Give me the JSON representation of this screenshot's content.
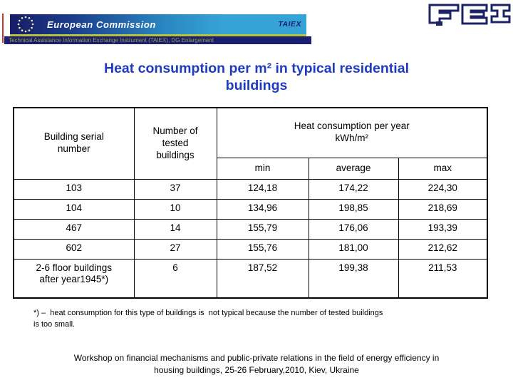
{
  "header": {
    "org_name": "European Commission",
    "taiex_label": "TAIEX",
    "subbar_text": "Technical Assistance Information Exchange Instrument (TAIEX), DG Enlargement",
    "fei_logo_text": "FEI",
    "icons": {
      "eu_stars": "eu-stars-icon",
      "fei": "fei-logo"
    }
  },
  "title": "Heat consumption per m² in typical residential\nbuildings",
  "table": {
    "col_building": "Building serial\nnumber",
    "col_tested": "Number of\ntested\nbuildings",
    "col_heat_span": "Heat consumption per year\nkWh/m²",
    "sub_headers": [
      "min",
      "average",
      "max"
    ],
    "rows": [
      [
        "103",
        "37",
        "124,18",
        "174,22",
        "224,30"
      ],
      [
        "104",
        "10",
        "134,96",
        "198,85",
        "218,69"
      ],
      [
        "467",
        "14",
        "155,79",
        "176,06",
        "193,39"
      ],
      [
        "602",
        "27",
        "155,76",
        "181,00",
        "212,62"
      ],
      [
        "2-6 floor buildings\nafter year1945*)",
        "6",
        "187,52",
        "199,38",
        "211,53"
      ]
    ]
  },
  "footnote": "*) –  heat consumption for this type of buildings is  not typical because the number of tested buildings\nis too small.",
  "workshop": "Workshop on financial mechanisms and public-private relations in the field of energy efficiency in\nhousing buildings, 25-26 February,2010, Kiev, Ukraine",
  "colors": {
    "title_blue": "#1f3bc0",
    "banner_dark": "#181c66",
    "banner_light": "#36a3d6",
    "separator_green": "#b5c43a",
    "subbar_bg": "#1c1f70",
    "subbar_text": "#9aa03a",
    "red_accent": "#d03030",
    "logo_navy": "#1b2366"
  }
}
